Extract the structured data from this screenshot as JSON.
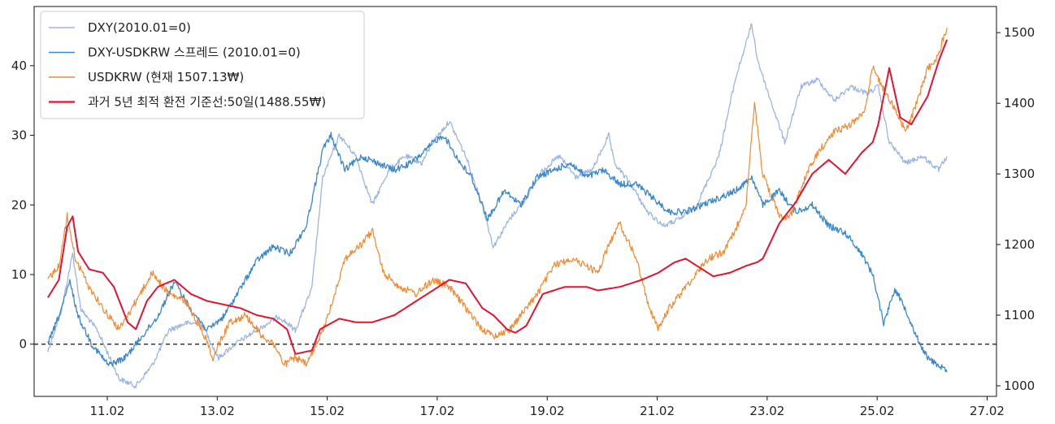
{
  "chart_data": {
    "type": "line",
    "title": "",
    "xlabel": "",
    "ylabel": "",
    "ylim_left": [
      -7.5,
      48.5
    ],
    "ylim_right": [
      985,
      1537
    ],
    "x_ticks": [
      "11.02",
      "13.02",
      "15.02",
      "17.02",
      "19.02",
      "21.02",
      "23.02",
      "25.02",
      "27.02"
    ],
    "y_ticks_left": [
      "0",
      "10",
      "20",
      "30",
      "40"
    ],
    "y_ticks_right": [
      "1000",
      "1100",
      "1200",
      "1300",
      "1400",
      "1500"
    ],
    "legend_position": "upper-left",
    "zero_reference_line": true,
    "series": [
      {
        "name": "DXY(2010.01=0)",
        "axis": "left",
        "color": "#9bb6e6",
        "x": [
          2010.0,
          2010.25,
          2010.45,
          2010.6,
          2010.9,
          2011.3,
          2011.6,
          2011.9,
          2012.2,
          2012.5,
          2012.8,
          2013.1,
          2013.4,
          2013.8,
          2014.2,
          2014.5,
          2014.8,
          2015.0,
          2015.3,
          2015.6,
          2015.9,
          2016.2,
          2016.5,
          2016.8,
          2017.0,
          2017.3,
          2017.6,
          2017.9,
          2018.1,
          2018.4,
          2018.7,
          2019.0,
          2019.3,
          2019.6,
          2019.9,
          2020.2,
          2020.3,
          2020.6,
          2020.9,
          2021.2,
          2021.5,
          2021.8,
          2022.2,
          2022.5,
          2022.8,
          2022.9,
          2023.1,
          2023.4,
          2023.7,
          2024.0,
          2024.3,
          2024.6,
          2024.9,
          2025.1,
          2025.3,
          2025.6,
          2025.9,
          2026.2,
          2026.35
        ],
        "y": [
          -1,
          5,
          13,
          5,
          2,
          -5,
          -6,
          -3,
          2,
          3,
          3,
          -2,
          0,
          2,
          4,
          2,
          8,
          24,
          30,
          27,
          20,
          25,
          27,
          26,
          29,
          32,
          27,
          20,
          14,
          18,
          21,
          25,
          27,
          24,
          25,
          30,
          26,
          23,
          19,
          17,
          18,
          20,
          27,
          38,
          46,
          41,
          36,
          29,
          37,
          38,
          35,
          37,
          36,
          37,
          29,
          26,
          27,
          25,
          27
        ]
      },
      {
        "name": "DXY-USDKRW 스프레드 (2010.01=0)",
        "axis": "left",
        "color": "#3b87c9",
        "x": [
          2010.0,
          2010.2,
          2010.4,
          2010.55,
          2010.8,
          2011.1,
          2011.4,
          2011.7,
          2012.0,
          2012.3,
          2012.6,
          2012.9,
          2013.2,
          2013.5,
          2013.8,
          2014.1,
          2014.4,
          2014.7,
          2015.0,
          2015.15,
          2015.4,
          2015.7,
          2016.0,
          2016.3,
          2016.6,
          2016.9,
          2017.0,
          2017.2,
          2017.5,
          2017.7,
          2018.0,
          2018.3,
          2018.6,
          2018.9,
          2019.2,
          2019.5,
          2019.8,
          2020.1,
          2020.4,
          2020.7,
          2021.0,
          2021.3,
          2021.6,
          2021.9,
          2022.2,
          2022.5,
          2022.8,
          2023.0,
          2023.3,
          2023.6,
          2023.9,
          2024.2,
          2024.5,
          2024.8,
          2025.0,
          2025.2,
          2025.4,
          2025.6,
          2025.8,
          2026.0,
          2026.2,
          2026.35
        ],
        "y": [
          0,
          4,
          9,
          4,
          0,
          -3,
          -2,
          1,
          4,
          9,
          5,
          2,
          4,
          8,
          12,
          14,
          13,
          17,
          28,
          30,
          25,
          27,
          26,
          25,
          26,
          28,
          29,
          30,
          26,
          24,
          18,
          22,
          20,
          24,
          25,
          26,
          24,
          25,
          23,
          23,
          21,
          19,
          19,
          20,
          21,
          22,
          24,
          20,
          22,
          19,
          20,
          17,
          16,
          13,
          10,
          3,
          8,
          5,
          1,
          -2,
          -3,
          -4
        ]
      },
      {
        "name": "USDKRW (현재 1507.13₩)",
        "axis": "right",
        "color": "#ef8a33",
        "x": [
          2010.0,
          2010.2,
          2010.35,
          2010.5,
          2010.75,
          2011.0,
          2011.3,
          2011.6,
          2011.9,
          2012.2,
          2012.5,
          2012.8,
          2013.0,
          2013.3,
          2013.6,
          2013.9,
          2014.1,
          2014.3,
          2014.5,
          2014.7,
          2014.9,
          2015.1,
          2015.4,
          2015.7,
          2015.9,
          2016.1,
          2016.4,
          2016.7,
          2017.0,
          2017.3,
          2017.6,
          2017.9,
          2018.1,
          2018.4,
          2018.7,
          2018.9,
          2019.2,
          2019.5,
          2019.8,
          2020.0,
          2020.2,
          2020.4,
          2020.7,
          2020.9,
          2021.1,
          2021.3,
          2021.5,
          2021.8,
          2022.0,
          2022.3,
          2022.5,
          2022.7,
          2022.85,
          2023.0,
          2023.3,
          2023.5,
          2023.8,
          2024.0,
          2024.3,
          2024.6,
          2024.85,
          2025.0,
          2025.2,
          2025.35,
          2025.6,
          2025.8,
          2026.0,
          2026.15,
          2026.35
        ],
        "y": [
          1150,
          1170,
          1240,
          1180,
          1140,
          1110,
          1080,
          1120,
          1160,
          1130,
          1120,
          1080,
          1040,
          1090,
          1100,
          1070,
          1060,
          1030,
          1040,
          1030,
          1060,
          1100,
          1180,
          1200,
          1220,
          1160,
          1140,
          1130,
          1150,
          1140,
          1110,
          1080,
          1070,
          1080,
          1110,
          1130,
          1170,
          1180,
          1170,
          1160,
          1200,
          1230,
          1180,
          1120,
          1080,
          1110,
          1130,
          1160,
          1180,
          1190,
          1220,
          1260,
          1400,
          1300,
          1240,
          1240,
          1300,
          1330,
          1360,
          1370,
          1390,
          1450,
          1420,
          1400,
          1360,
          1400,
          1450,
          1460,
          1507
        ]
      },
      {
        "name": "과거 5년 최적 환전 기준선:50일(1488.55₩)",
        "axis": "right",
        "color": "#e11432",
        "x": [
          2010.0,
          2010.2,
          2010.35,
          2010.45,
          2010.55,
          2010.75,
          2011.0,
          2011.2,
          2011.45,
          2011.6,
          2011.8,
          2012.0,
          2012.3,
          2012.6,
          2012.9,
          2013.2,
          2013.5,
          2013.8,
          2014.1,
          2014.35,
          2014.5,
          2014.8,
          2014.95,
          2015.3,
          2015.6,
          2015.9,
          2016.3,
          2016.7,
          2017.0,
          2017.3,
          2017.6,
          2017.9,
          2018.1,
          2018.35,
          2018.5,
          2018.7,
          2019.0,
          2019.4,
          2019.8,
          2020.0,
          2020.4,
          2020.8,
          2021.1,
          2021.4,
          2021.6,
          2021.9,
          2022.1,
          2022.4,
          2022.7,
          2022.9,
          2023.0,
          2023.3,
          2023.6,
          2023.9,
          2024.2,
          2024.5,
          2024.8,
          2025.0,
          2025.1,
          2025.3,
          2025.5,
          2025.7,
          2026.0,
          2026.2,
          2026.35
        ],
        "y": [
          1125,
          1150,
          1225,
          1240,
          1190,
          1165,
          1160,
          1140,
          1090,
          1080,
          1120,
          1140,
          1150,
          1130,
          1120,
          1115,
          1110,
          1100,
          1095,
          1080,
          1045,
          1050,
          1080,
          1095,
          1090,
          1090,
          1100,
          1120,
          1135,
          1150,
          1145,
          1110,
          1100,
          1080,
          1075,
          1085,
          1130,
          1140,
          1140,
          1135,
          1140,
          1150,
          1160,
          1175,
          1180,
          1165,
          1155,
          1160,
          1170,
          1175,
          1180,
          1230,
          1260,
          1300,
          1320,
          1300,
          1330,
          1345,
          1370,
          1450,
          1380,
          1370,
          1410,
          1460,
          1490
        ]
      }
    ]
  }
}
